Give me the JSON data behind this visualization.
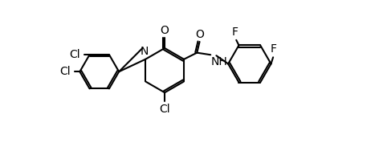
{
  "bg_color": "#ffffff",
  "line_color": "#000000",
  "line_width": 1.5,
  "font_size": 10,
  "atoms": {
    "Cl1_label": "Cl",
    "Cl2_label": "Cl",
    "Cl3_label": "Cl",
    "N_label": "N",
    "O1_label": "O",
    "O2_label": "O",
    "NH_label": "NH",
    "F1_label": "F",
    "F2_label": "F"
  }
}
